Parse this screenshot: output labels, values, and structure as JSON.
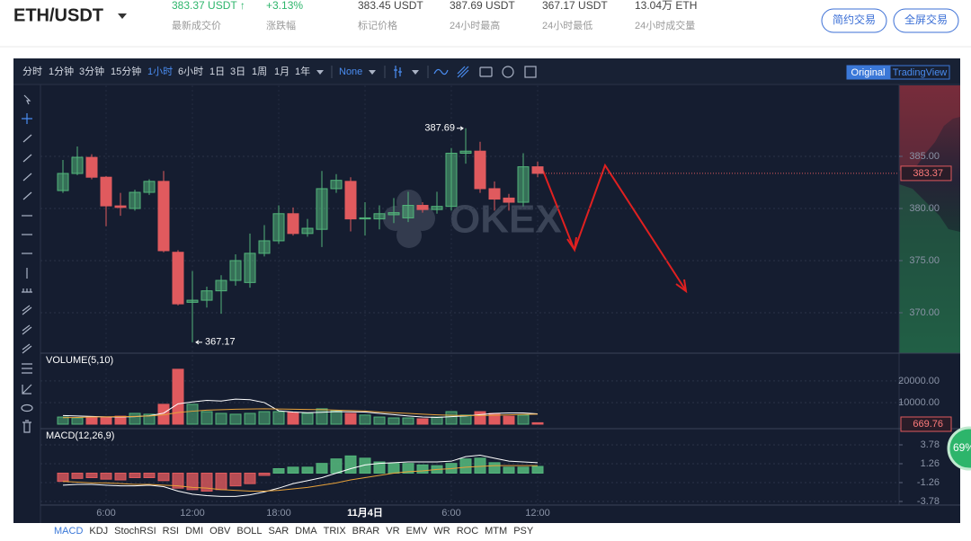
{
  "header": {
    "pair": "ETH/USDT",
    "stats": [
      {
        "value": "383.37 USDT ↑",
        "label": "最新成交价"
      },
      {
        "value": "+3.13%",
        "label": "涨跌幅"
      },
      {
        "value": "383.45 USDT",
        "label": "标记价格"
      },
      {
        "value": "387.69 USDT",
        "label": "24小时最高"
      },
      {
        "value": "367.17 USDT",
        "label": "24小时最低"
      },
      {
        "value": "13.04万 ETH",
        "label": "24小时成交量"
      }
    ],
    "highlight_stats": 2,
    "buttons": [
      "简约交易",
      "全屏交易"
    ]
  },
  "toolbar": {
    "intervals": [
      "分时",
      "1分钟",
      "3分钟",
      "15分钟",
      "1小时",
      "6小时",
      "1日",
      "3日",
      "1周",
      "1月",
      "1年"
    ],
    "active_interval": 4,
    "chart_style": "None",
    "views": [
      "Original",
      "TradingView"
    ],
    "active_view": 0
  },
  "watermark": "OKEX",
  "indicator_tabs": [
    "MACD",
    "KDJ",
    "StochRSI",
    "RSI",
    "DMI",
    "OBV",
    "BOLL",
    "SAR",
    "DMA",
    "TRIX",
    "BRAR",
    "VR",
    "EMV",
    "WR",
    "ROC",
    "MTM",
    "PSY"
  ],
  "active_tab": 0,
  "badge": "69%",
  "chart_data": [
    {
      "type": "candlestick",
      "categories": [
        null,
        null,
        null,
        "6:00",
        null,
        null,
        null,
        null,
        null,
        "12:00",
        null,
        null,
        null,
        null,
        null,
        "18:00",
        null,
        null,
        null,
        null,
        null,
        "11月4日",
        null,
        null,
        null,
        null,
        null,
        "6:00",
        null,
        null,
        null,
        null,
        null,
        "12:00"
      ],
      "open": [
        381.72,
        383.36,
        384.9,
        383.0,
        380.25,
        380.0,
        381.55,
        382.6,
        375.8,
        371.0,
        371.2,
        372.1,
        373.1,
        372.9,
        375.7,
        376.9,
        379.5,
        377.6,
        378.0,
        381.9,
        382.6,
        379.0,
        379.0,
        379.4,
        379.1,
        380.3,
        379.9,
        380.2,
        385.3,
        385.5,
        381.9,
        381.0,
        380.6,
        384.0
      ],
      "high": [
        384.66,
        385.95,
        385.2,
        383.1,
        381.5,
        381.8,
        382.8,
        383.6,
        376.0,
        374.0,
        372.5,
        373.6,
        375.6,
        377.6,
        378.4,
        380.3,
        380.1,
        379.0,
        383.6,
        383.3,
        383.0,
        380.6,
        380.3,
        381.0,
        381.6,
        380.6,
        381.6,
        385.8,
        387.69,
        386.4,
        382.6,
        381.4,
        385.3,
        384.5
      ],
      "low": [
        381.5,
        383.2,
        382.8,
        378.3,
        379.3,
        379.8,
        381.3,
        375.8,
        370.7,
        367.17,
        370.5,
        369.9,
        372.6,
        372.4,
        375.4,
        376.6,
        377.4,
        377.3,
        376.3,
        381.5,
        377.8,
        377.4,
        378.0,
        378.6,
        378.7,
        379.6,
        379.5,
        379.8,
        384.3,
        381.5,
        379.8,
        379.8,
        380.2,
        383.0
      ],
      "close": [
        383.36,
        384.91,
        383.0,
        380.25,
        380.1,
        381.55,
        382.6,
        375.95,
        370.85,
        371.2,
        372.1,
        373.1,
        375.0,
        375.7,
        376.9,
        379.5,
        377.6,
        378.1,
        381.9,
        382.7,
        379.0,
        379.1,
        379.5,
        379.6,
        380.3,
        379.9,
        380.2,
        385.3,
        385.5,
        381.9,
        380.9,
        380.6,
        384.0,
        383.37
      ],
      "up_color": "#52b47a",
      "down_color": "#e05a5e",
      "ylim": [
        366.12,
        391.81
      ],
      "yticks": [
        {
          "value": 370,
          "label": "370.00"
        },
        {
          "value": 375,
          "label": "375.00"
        },
        {
          "value": 380,
          "label": "380.00"
        },
        {
          "value": 385,
          "label": "385.00"
        }
      ],
      "grid": true
    },
    {
      "type": "volume",
      "title": "VOLUME(5,10)",
      "values": [
        3300,
        2900,
        3300,
        3300,
        3700,
        5000,
        4600,
        9200,
        25400,
        9200,
        5800,
        5000,
        4600,
        5000,
        5800,
        5800,
        5400,
        5000,
        7100,
        6200,
        5000,
        4200,
        3300,
        2900,
        2900,
        2500,
        3300,
        5800,
        4200,
        5800,
        5000,
        3700,
        4200,
        669.76
      ],
      "series": [
        {
          "color": "#ffffff",
          "values": [
            4000,
            3800,
            3600,
            3400,
            3300,
            3500,
            3900,
            5100,
            9400,
            10300,
            11000,
            10700,
            11600,
            11300,
            10000,
            6200,
            5600,
            5300,
            5500,
            5800,
            5700,
            5600,
            5000,
            4400,
            3800,
            3300,
            3100,
            3500,
            3800,
            4400,
            5000,
            5200,
            5200,
            4800
          ]
        },
        {
          "color": "#e8a23a",
          "values": [
            3000,
            3100,
            3300,
            3400,
            3500,
            3600,
            3800,
            4300,
            5400,
            6000,
            6500,
            6700,
            6900,
            7000,
            7100,
            7000,
            6900,
            6800,
            6700,
            6500,
            6300,
            6100,
            5600,
            5300,
            5000,
            4600,
            4300,
            4100,
            4000,
            4000,
            4100,
            4300,
            4500,
            4600
          ]
        }
      ],
      "ylim": [
        0,
        32000
      ],
      "yticks": [
        {
          "value": 10000,
          "label": "10000.00"
        },
        {
          "value": 20000,
          "label": "20000.00"
        }
      ],
      "grid": true
    },
    {
      "type": "macd",
      "title": "MACD(12,26,9)",
      "values": [
        -1.1,
        -0.7,
        -0.6,
        -0.8,
        -0.9,
        -0.6,
        -0.6,
        -1.0,
        -2.0,
        -2.2,
        -2.4,
        -2.2,
        -1.7,
        -1.4,
        -0.3,
        0.6,
        0.8,
        0.8,
        1.3,
        1.9,
        2.3,
        2.0,
        1.5,
        1.3,
        1.3,
        1.1,
        1.0,
        1.3,
        1.9,
        2.0,
        1.4,
        0.8,
        0.8,
        0.9
      ],
      "series": [
        {
          "color": "#ffffff",
          "values": [
            -1.6,
            -1.5,
            -1.5,
            -1.6,
            -1.7,
            -1.7,
            -1.6,
            -1.8,
            -2.4,
            -2.8,
            -3.0,
            -3.1,
            -3.1,
            -2.9,
            -2.5,
            -2.0,
            -1.4,
            -1.0,
            -0.6,
            0.0,
            0.6,
            1.1,
            1.3,
            1.4,
            1.5,
            1.5,
            1.5,
            1.6,
            2.2,
            2.4,
            2.0,
            1.6,
            1.5,
            1.4
          ]
        },
        {
          "color": "#e8a23a",
          "values": [
            -1.1,
            -1.2,
            -1.3,
            -1.3,
            -1.4,
            -1.5,
            -1.5,
            -1.6,
            -1.7,
            -1.9,
            -2.0,
            -2.2,
            -2.3,
            -2.4,
            -2.4,
            -2.3,
            -2.1,
            -1.9,
            -1.6,
            -1.3,
            -0.9,
            -0.6,
            -0.3,
            0.0,
            0.2,
            0.3,
            0.5,
            0.6,
            0.8,
            0.9,
            1.0,
            1.0,
            1.0,
            1.0
          ]
        }
      ],
      "ylim": [
        -4.26,
        5.82
      ],
      "yticks": [
        -3.78,
        -1.26,
        1.26,
        3.78
      ],
      "grid": true
    }
  ]
}
